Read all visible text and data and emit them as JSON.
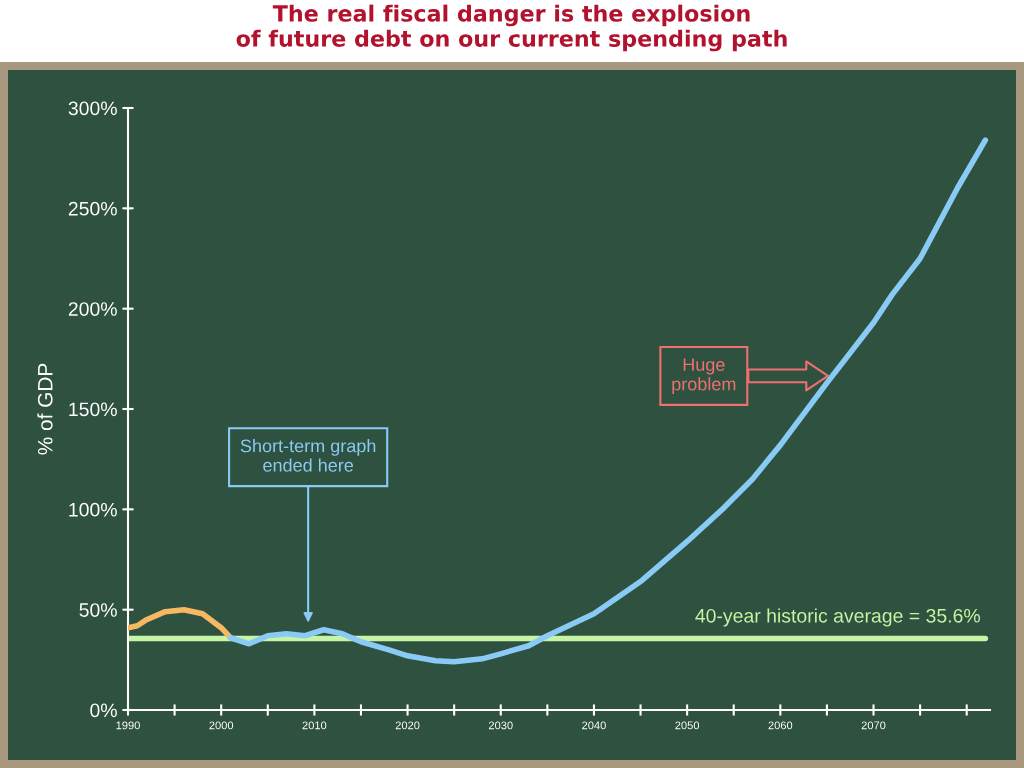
{
  "chart_data": {
    "type": "line",
    "title": "The real fiscal danger is the explosion\nof future debt on our current spending path",
    "ylabel": "% of GDP",
    "series": [
      {
        "color": "#f7b863",
        "x": [
          1990,
          1991,
          1992,
          1994,
          1996,
          1998,
          2000,
          2001
        ],
        "values": [
          41,
          42,
          45,
          49,
          50,
          48,
          41,
          36
        ]
      },
      {
        "color": "#8acbf5",
        "x": [
          2001,
          2003,
          2005,
          2007,
          2009,
          2011,
          2013,
          2015,
          2018,
          2020,
          2023,
          2025,
          2028,
          2030,
          2033,
          2035,
          2040,
          2045,
          2050,
          2054,
          2057,
          2060,
          2065,
          2067,
          2070,
          2072,
          2075,
          2079,
          2082
        ],
        "values": [
          36,
          33,
          37,
          38,
          37,
          40,
          38,
          34,
          30,
          27,
          24.5,
          24,
          25.5,
          28,
          32,
          37,
          48,
          64,
          84,
          101,
          115,
          132,
          163,
          175,
          193,
          207,
          225,
          260,
          284
        ]
      }
    ],
    "ref_lines": [
      {
        "axis": "y",
        "value": 35.6,
        "label": "40-year historic average = 35.6%",
        "color": "#c6f5a6",
        "line_style": "solid"
      }
    ],
    "annotations": [
      "Short-term graph\nended here",
      "Huge\nproblem"
    ],
    "xlim": [
      1990,
      2082.5
    ],
    "ylim": [
      0,
      300
    ],
    "xticks": [
      1990,
      {
        "value": 1995,
        "label": null
      },
      2000,
      {
        "value": 2005,
        "label": null
      },
      2010,
      {
        "value": 2015,
        "label": null
      },
      2020,
      {
        "value": 2025,
        "label": null
      },
      2030,
      {
        "value": 2035,
        "label": null
      },
      2040,
      {
        "value": 2045,
        "label": null
      },
      2050,
      {
        "value": 2055,
        "label": null
      },
      2060,
      {
        "value": 2065,
        "label": null
      },
      2070,
      {
        "value": 2075,
        "label": null
      },
      {
        "value": 2080,
        "label": null
      }
    ],
    "yticks": [
      {
        "value": 0,
        "label": "0%"
      },
      {
        "value": 50,
        "label": "50%"
      },
      {
        "value": 100,
        "label": "100%"
      },
      {
        "value": 150,
        "label": "150%"
      },
      {
        "value": 200,
        "label": "200%"
      },
      {
        "value": 250,
        "label": "250%"
      },
      {
        "value": 300,
        "label": "300%"
      }
    ],
    "grid": false,
    "legend": false,
    "marker": "none",
    "line_style": "solid"
  }
}
